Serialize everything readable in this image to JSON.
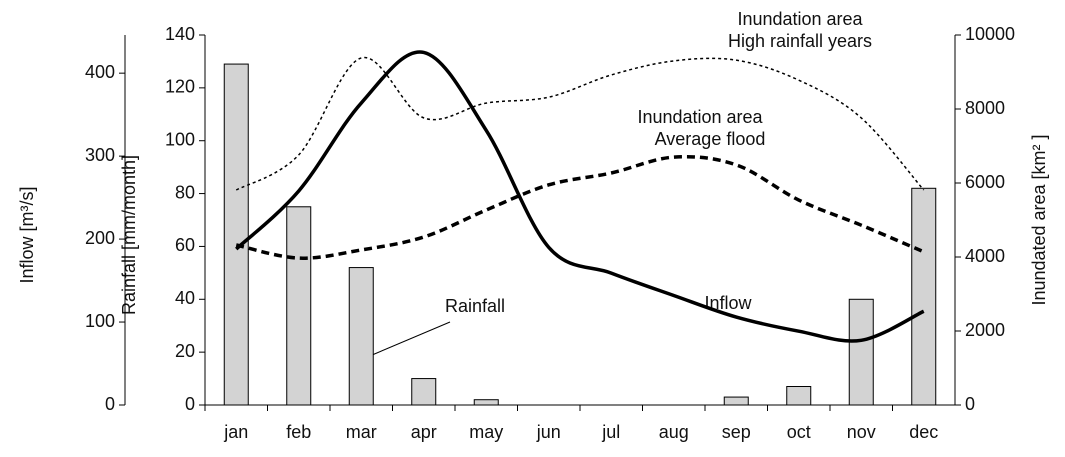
{
  "chart_data": {
    "type": "bar-line",
    "categories": [
      "jan",
      "feb",
      "mar",
      "apr",
      "may",
      "jun",
      "jul",
      "aug",
      "sep",
      "oct",
      "nov",
      "dec"
    ],
    "ylabel": "Rainfall [mm/month]",
    "ylim": [
      0,
      140
    ],
    "yticks": [
      0,
      20,
      40,
      60,
      80,
      100,
      120,
      140
    ],
    "y2label": "Inundated area [km² ]",
    "y2lim": [
      0,
      10000
    ],
    "y2ticks": [
      0,
      2000,
      4000,
      6000,
      8000,
      10000
    ],
    "y3label": "Inflow [m³/s]",
    "y3lim": [
      0,
      446
    ],
    "y3ticks": [
      0,
      100,
      200,
      300,
      400
    ],
    "series": [
      {
        "name": "Rainfall",
        "type": "bar",
        "axis": "y",
        "color": "#d3d3d3",
        "values": [
          129,
          75,
          52,
          10,
          2,
          0,
          0,
          0,
          3,
          7,
          40,
          82
        ]
      },
      {
        "name": "Inflow",
        "type": "line",
        "axis": "y3",
        "color": "#000000",
        "style": "solid",
        "values": [
          188,
          258,
          364,
          425,
          331,
          190,
          159,
          132,
          106,
          89,
          78,
          113
        ]
      },
      {
        "name": "Inundation area Average flood",
        "type": "line",
        "axis": "y2",
        "color": "#000000",
        "style": "dashed",
        "values": [
          4324,
          3970,
          4190,
          4540,
          5270,
          5950,
          6270,
          6700,
          6490,
          5540,
          4860,
          4140
        ]
      },
      {
        "name": "Inundation area High rainfall years",
        "type": "line",
        "axis": "y2",
        "color": "#000000",
        "style": "dotted",
        "values": [
          5810,
          6760,
          9380,
          7760,
          8160,
          8320,
          8920,
          9300,
          9320,
          8780,
          7760,
          5810
        ]
      }
    ],
    "annotations": [
      "Inundation area",
      "High rainfall years",
      "Inundation area",
      "Average flood",
      "Rainfall",
      "Inflow"
    ]
  }
}
